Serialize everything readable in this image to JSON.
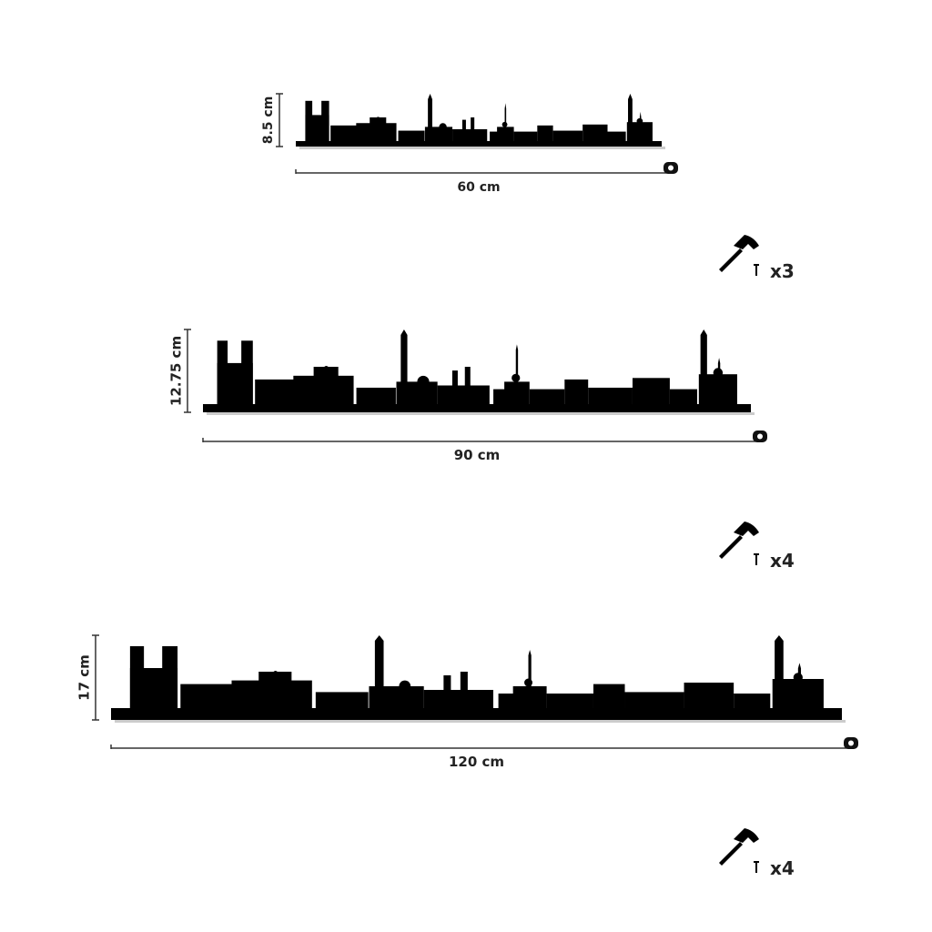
{
  "sizes": [
    {
      "height": "8.5 cm",
      "width": "60 cm",
      "nails": "x3"
    },
    {
      "height": "12.75 cm",
      "width": "90 cm",
      "nails": "x4"
    },
    {
      "height": "17 cm",
      "width": "120 cm",
      "nails": "x4"
    }
  ]
}
